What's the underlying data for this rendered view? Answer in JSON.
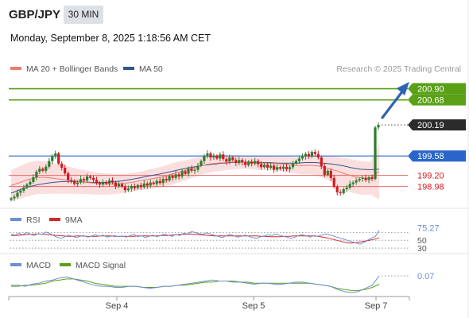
{
  "header": {
    "symbol": "GBP/JPY",
    "timeframe": "30 MIN",
    "timestamp": "Monday, September 8, 2025 1:18:56 AM CET"
  },
  "legend": {
    "ma20": "MA 20 + Bollinger Bands",
    "ma50": "MA 50",
    "credit": "Research © 2025 Trading Central"
  },
  "colors": {
    "up": "#2d7d2d",
    "down": "#d2191e",
    "ma20": "#ef7a74",
    "ma50": "#34568b",
    "bands": "#f7c4c4",
    "support": "#2a66c9",
    "resistance_green": "#5aa017",
    "resistance_red": "#ea6a6a",
    "current": "#2b2b2b",
    "rsi": "#6e8fd6",
    "rsi_ma": "#d42828",
    "macd": "#6e8fd6",
    "macd_signal": "#5aa017",
    "arrow": "#2d63b3"
  },
  "chart_data": {
    "type": "candlestick",
    "y_range": [
      198.71,
      201.08
    ],
    "x_labels": [
      "Sep 4",
      "Sep 5",
      "Sep 7"
    ],
    "levels": [
      {
        "name": "resistance-2",
        "value": 200.9,
        "label": "200.90",
        "style": "green-box"
      },
      {
        "name": "resistance-1",
        "value": 200.68,
        "label": "200.68",
        "style": "green-box"
      },
      {
        "name": "current-price",
        "value": 200.19,
        "label": "200.19",
        "style": "dark-box"
      },
      {
        "name": "pivot",
        "value": 199.58,
        "label": "199.58",
        "style": "blue-box"
      },
      {
        "name": "support-1",
        "value": 199.2,
        "label": "199.20",
        "style": "red-text"
      },
      {
        "name": "support-2",
        "value": 198.98,
        "label": "198.98",
        "style": "red-text"
      }
    ],
    "candles_close": [
      198.75,
      198.78,
      198.86,
      198.9,
      198.96,
      199.02,
      199.07,
      199.16,
      199.27,
      199.33,
      199.29,
      199.37,
      199.48,
      199.57,
      199.63,
      199.43,
      199.35,
      199.24,
      199.11,
      199.09,
      199.03,
      199.06,
      199.13,
      199.1,
      199.18,
      199.15,
      199.11,
      199.05,
      199.02,
      199.07,
      199.04,
      199.1,
      199.06,
      198.99,
      199.03,
      198.98,
      198.91,
      198.94,
      198.99,
      198.95,
      199.01,
      198.97,
      199.04,
      199.0,
      199.06,
      199.03,
      199.09,
      199.05,
      199.13,
      199.1,
      199.19,
      199.15,
      199.22,
      199.18,
      199.28,
      199.23,
      199.33,
      199.29,
      199.31,
      199.39,
      199.48,
      199.57,
      199.63,
      199.55,
      199.58,
      199.53,
      199.61,
      199.52,
      199.47,
      199.55,
      199.5,
      199.44,
      199.5,
      199.46,
      199.4,
      199.47,
      199.43,
      199.48,
      199.42,
      199.36,
      199.41,
      199.35,
      199.39,
      199.31,
      199.36,
      199.33,
      199.37,
      199.32,
      199.36,
      199.43,
      199.48,
      199.53,
      199.57,
      199.62,
      199.57,
      199.66,
      199.62,
      199.55,
      199.38,
      199.21,
      199.29,
      199.15,
      198.98,
      198.87,
      198.85,
      198.93,
      198.96,
      199.03,
      199.06,
      199.1,
      199.13,
      199.15,
      199.11,
      199.16,
      199.13,
      200.14,
      200.19
    ],
    "ma20": [
      199.0,
      199.06,
      199.12,
      199.16,
      199.16,
      199.14,
      199.12,
      199.1,
      199.08,
      199.06,
      199.04,
      199.03,
      199.03,
      199.04,
      199.06,
      199.09,
      199.12,
      199.15,
      199.18,
      199.24,
      199.28,
      199.33,
      199.38,
      199.42,
      199.44,
      199.45,
      199.46,
      199.46,
      199.45,
      199.44,
      199.44,
      199.43,
      199.42,
      199.4,
      199.39,
      199.4,
      199.38,
      199.34,
      199.29,
      199.23,
      199.18,
      199.15,
      199.14,
      199.28
    ],
    "ma50": [
      198.85,
      198.92,
      198.98,
      199.02,
      199.05,
      199.07,
      199.08,
      199.08,
      199.07,
      199.06,
      199.06,
      199.07,
      199.09,
      199.12,
      199.15,
      199.19,
      199.22,
      199.26,
      199.3,
      199.34,
      199.37,
      199.4,
      199.42,
      199.44,
      199.45,
      199.46,
      199.46,
      199.45,
      199.45,
      199.44,
      199.44,
      199.44,
      199.45,
      199.45,
      199.44,
      199.42,
      199.39,
      199.35,
      199.32,
      199.31,
      199.32
    ],
    "rsi": {
      "series_names": [
        "RSI",
        "9MA"
      ],
      "levels": [
        30,
        50,
        70
      ],
      "y_range": [
        20,
        85
      ],
      "value_label": "75.27",
      "level_labels": [
        "50",
        "30"
      ],
      "rsi": [
        66,
        63,
        68,
        64,
        70,
        66,
        62,
        67,
        65,
        71,
        68,
        62,
        58,
        55,
        59,
        63,
        60,
        57,
        60,
        62,
        58,
        61,
        64,
        60,
        63,
        58,
        60,
        62,
        59,
        61,
        58,
        62,
        65,
        59,
        62,
        57,
        60,
        63,
        59,
        62,
        66,
        63,
        60,
        65,
        62,
        68,
        66,
        72,
        70,
        67,
        65,
        69,
        66,
        63,
        60,
        57,
        61,
        65,
        62,
        58,
        60,
        63,
        60,
        57,
        55,
        59,
        61,
        64,
        62,
        66,
        63,
        60,
        58,
        55,
        58,
        62,
        64,
        61,
        58,
        62,
        60,
        63,
        66,
        64,
        61,
        58,
        55,
        52,
        49,
        46,
        43,
        40,
        44,
        50,
        56,
        60,
        75
      ],
      "ma": [
        62,
        62,
        63,
        64,
        65,
        66,
        66,
        65,
        64,
        63,
        62,
        61,
        60,
        60,
        61,
        61,
        60,
        60,
        60,
        61,
        61,
        61,
        60,
        60,
        60,
        60,
        60,
        61,
        61,
        61,
        61,
        61,
        62,
        62,
        63,
        64,
        65,
        65,
        66,
        65,
        64,
        63,
        62,
        61,
        61,
        61,
        61,
        61,
        61,
        61,
        61,
        61,
        61,
        60,
        60,
        59,
        59,
        59,
        60,
        60,
        61,
        61,
        61,
        61,
        61,
        60,
        58,
        56,
        53,
        50,
        47,
        44,
        43,
        44,
        46,
        48,
        50,
        53,
        56
      ]
    },
    "macd": {
      "series_names": [
        "MACD",
        "MACD Signal"
      ],
      "y_range": [
        -0.12,
        0.1
      ],
      "value_label": "0.07",
      "macd": [
        -0.02,
        -0.02,
        -0.03,
        -0.01,
        0.0,
        0.02,
        0.03,
        0.05,
        0.06,
        0.04,
        0.02,
        0.0,
        -0.02,
        -0.03,
        -0.03,
        -0.04,
        -0.04,
        -0.03,
        -0.03,
        -0.04,
        -0.05,
        -0.04,
        -0.03,
        -0.03,
        -0.02,
        -0.01,
        0.0,
        0.01,
        0.02,
        0.03,
        0.02,
        0.02,
        0.01,
        0.01,
        0.0,
        -0.01,
        0.0,
        0.0,
        -0.01,
        -0.01,
        0.0,
        0.01,
        0.01,
        0.0,
        -0.01,
        -0.02,
        -0.03,
        -0.06,
        -0.08,
        -0.09,
        -0.08,
        -0.05,
        -0.02,
        0.07
      ],
      "signal": [
        -0.03,
        -0.03,
        -0.02,
        -0.02,
        -0.01,
        0.0,
        0.02,
        0.03,
        0.04,
        0.04,
        0.03,
        0.02,
        0.0,
        -0.01,
        -0.02,
        -0.03,
        -0.03,
        -0.03,
        -0.03,
        -0.04,
        -0.04,
        -0.04,
        -0.03,
        -0.03,
        -0.02,
        -0.02,
        -0.01,
        0.0,
        0.01,
        0.01,
        0.02,
        0.02,
        0.02,
        0.01,
        0.01,
        0.0,
        0.0,
        0.0,
        0.0,
        0.0,
        0.0,
        0.0,
        0.0,
        0.0,
        -0.01,
        -0.02,
        -0.03,
        -0.05,
        -0.06,
        -0.07,
        -0.07,
        -0.06,
        -0.04,
        -0.01
      ]
    }
  }
}
